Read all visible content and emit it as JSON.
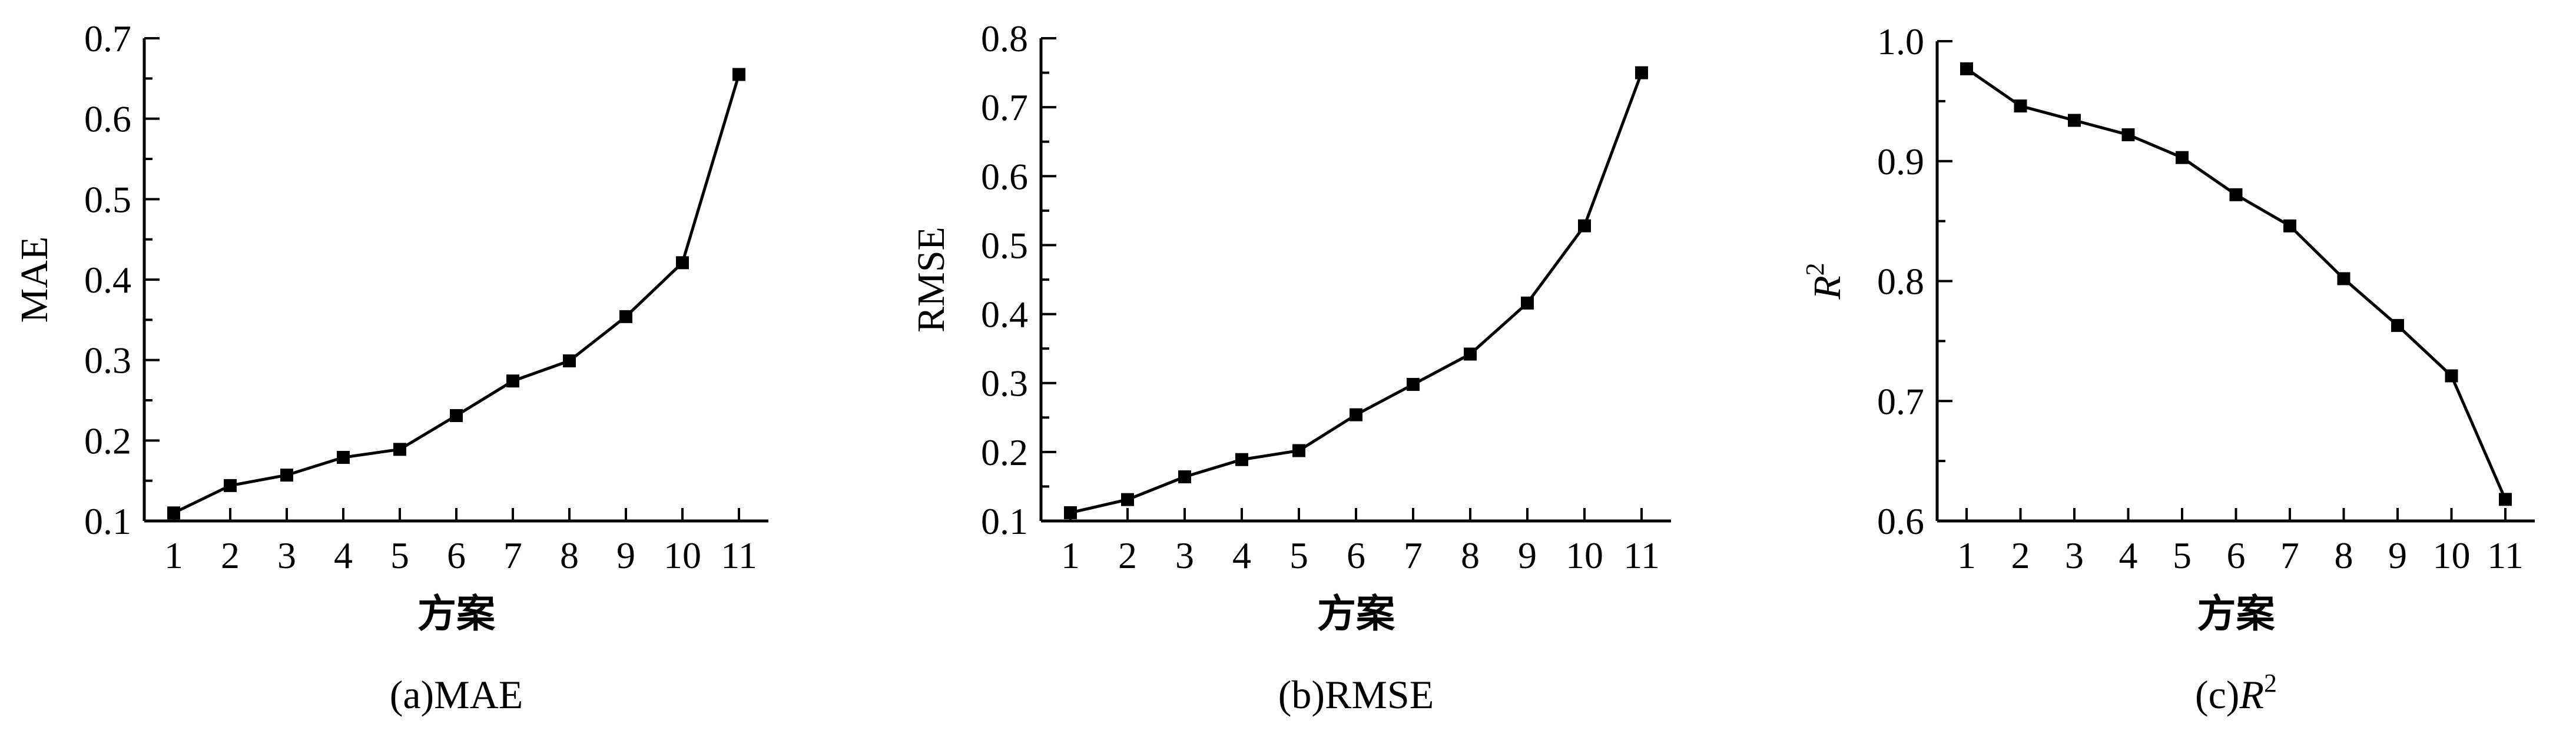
{
  "chart_data": [
    {
      "type": "line",
      "caption": "(a)MAE",
      "title": "",
      "xlabel": "方案",
      "ylabel": "MAE",
      "ylabel_italic": false,
      "ylabel_sup": "",
      "categories": [
        "1",
        "2",
        "3",
        "4",
        "5",
        "6",
        "7",
        "8",
        "9",
        "10",
        "11"
      ],
      "x": [
        1,
        2,
        3,
        4,
        5,
        6,
        7,
        8,
        9,
        10,
        11
      ],
      "values": [
        0.11,
        0.144,
        0.157,
        0.179,
        0.189,
        0.231,
        0.274,
        0.299,
        0.354,
        0.421,
        0.655
      ],
      "ylim": [
        0.1,
        0.7
      ],
      "yticks": [
        "0.1",
        "0.2",
        "0.3",
        "0.4",
        "0.5",
        "0.6",
        "0.7"
      ],
      "marker": "square",
      "grid": false,
      "line_color": "#000000"
    },
    {
      "type": "line",
      "caption": "(b)RMSE",
      "title": "",
      "xlabel": "方案",
      "ylabel": "RMSE",
      "ylabel_italic": false,
      "ylabel_sup": "",
      "categories": [
        "1",
        "2",
        "3",
        "4",
        "5",
        "6",
        "7",
        "8",
        "9",
        "10",
        "11"
      ],
      "x": [
        1,
        2,
        3,
        4,
        5,
        6,
        7,
        8,
        9,
        10,
        11
      ],
      "values": [
        0.112,
        0.131,
        0.164,
        0.189,
        0.202,
        0.254,
        0.298,
        0.342,
        0.416,
        0.528,
        0.75
      ],
      "ylim": [
        0.1,
        0.8
      ],
      "yticks": [
        "0.1",
        "0.2",
        "0.3",
        "0.4",
        "0.5",
        "0.6",
        "0.7",
        "0.8"
      ],
      "marker": "square",
      "grid": false,
      "line_color": "#000000"
    },
    {
      "type": "line",
      "caption": "(c)R",
      "caption_italic_part": "R",
      "caption_sup": "2",
      "title": "",
      "xlabel": "方案",
      "ylabel": "R",
      "ylabel_italic": true,
      "ylabel_sup": "2",
      "categories": [
        "1",
        "2",
        "3",
        "4",
        "5",
        "6",
        "7",
        "8",
        "9",
        "10",
        "11"
      ],
      "x": [
        1,
        2,
        3,
        4,
        5,
        6,
        7,
        8,
        9,
        10,
        11
      ],
      "values": [
        0.977,
        0.946,
        0.934,
        0.922,
        0.903,
        0.872,
        0.846,
        0.802,
        0.763,
        0.721,
        0.618
      ],
      "ylim": [
        0.6,
        1.0
      ],
      "yticks": [
        "0.6",
        "0.7",
        "0.8",
        "0.9",
        "1.0"
      ],
      "marker": "square",
      "grid": false,
      "line_color": "#000000"
    }
  ]
}
